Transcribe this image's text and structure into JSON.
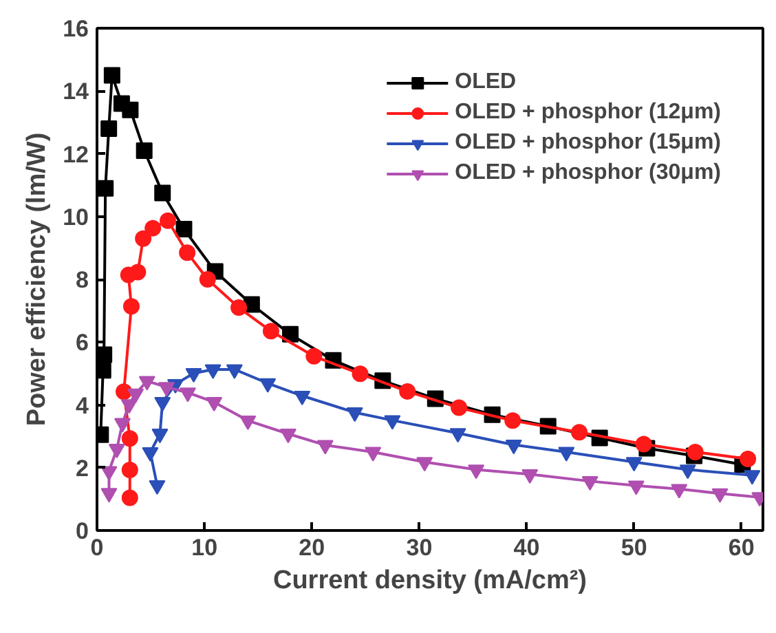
{
  "chart_data": {
    "type": "line",
    "xlabel": "Current density (mA/cm²)",
    "ylabel": "Power efficiency (lm/W)",
    "xlim": [
      0,
      62
    ],
    "ylim": [
      0,
      16
    ],
    "xticks": [
      0,
      10,
      20,
      30,
      40,
      50,
      60
    ],
    "yticks": [
      0,
      2,
      4,
      6,
      8,
      10,
      12,
      14,
      16
    ],
    "grid": false,
    "legend": "top right",
    "series": [
      {
        "name": "OLED",
        "color": "#000000",
        "marker": "square",
        "x": [
          0.34,
          0.56,
          0.65,
          0.78,
          1.1,
          1.4,
          2.3,
          3.1,
          4.4,
          6.1,
          8.1,
          11,
          14.4,
          18,
          22.0,
          26.6,
          31.5,
          36.8,
          42.0,
          46.8,
          51.2,
          55.6,
          60.1
        ],
        "values": [
          3.05,
          5.1,
          5.6,
          10.9,
          12.8,
          14.5,
          13.6,
          13.4,
          12.1,
          10.75,
          9.6,
          8.25,
          7.2,
          6.25,
          5.42,
          4.77,
          4.2,
          3.69,
          3.32,
          2.95,
          2.62,
          2.38,
          2.1
        ]
      },
      {
        "name": "OLED + phosphor (12μm)",
        "color": "#ff1a1a",
        "marker": "circle",
        "x": [
          3.06,
          3.06,
          3.06,
          2.5,
          3.2,
          2.93,
          3.8,
          4.3,
          5.2,
          6.6,
          8.4,
          10.3,
          13.2,
          16.2,
          20.2,
          24.5,
          28.9,
          33.7,
          38.7,
          44.9,
          50.9,
          55.7,
          60.6
        ],
        "values": [
          1.04,
          1.93,
          2.93,
          4.42,
          7.14,
          8.14,
          8.23,
          9.3,
          9.63,
          9.87,
          8.85,
          8.0,
          7.1,
          6.35,
          5.55,
          4.99,
          4.43,
          3.91,
          3.5,
          3.13,
          2.75,
          2.5,
          2.28
        ]
      },
      {
        "name": "OLED + phosphor (15μm)",
        "color": "#2a4fb8",
        "marker": "triangle",
        "x": [
          5.6,
          4.96,
          5.86,
          6.1,
          7.3,
          9.0,
          10.8,
          12.8,
          15.9,
          19.1,
          24.0,
          27.5,
          33.6,
          38.8,
          43.7,
          50.0,
          55.0,
          61.0
        ],
        "values": [
          1.44,
          2.49,
          3.08,
          4.09,
          4.66,
          5.01,
          5.13,
          5.13,
          4.69,
          4.29,
          3.76,
          3.51,
          3.1,
          2.73,
          2.5,
          2.18,
          1.94,
          1.76
        ]
      },
      {
        "name": "OLED + phosphor (30μm)",
        "color": "#b04fb0",
        "marker": "triangle",
        "x": [
          1.12,
          1.12,
          1.85,
          2.37,
          3.0,
          3.6,
          4.66,
          6.47,
          8.45,
          10.9,
          14.05,
          17.8,
          21.25,
          25.7,
          30.5,
          35.3,
          40.3,
          45.9,
          50.2,
          54.2,
          58.0,
          61.7
        ],
        "values": [
          1.19,
          1.89,
          2.6,
          3.42,
          4.02,
          4.36,
          4.76,
          4.57,
          4.39,
          4.09,
          3.5,
          3.08,
          2.72,
          2.5,
          2.18,
          1.94,
          1.79,
          1.57,
          1.43,
          1.32,
          1.18,
          1.06
        ]
      }
    ]
  }
}
